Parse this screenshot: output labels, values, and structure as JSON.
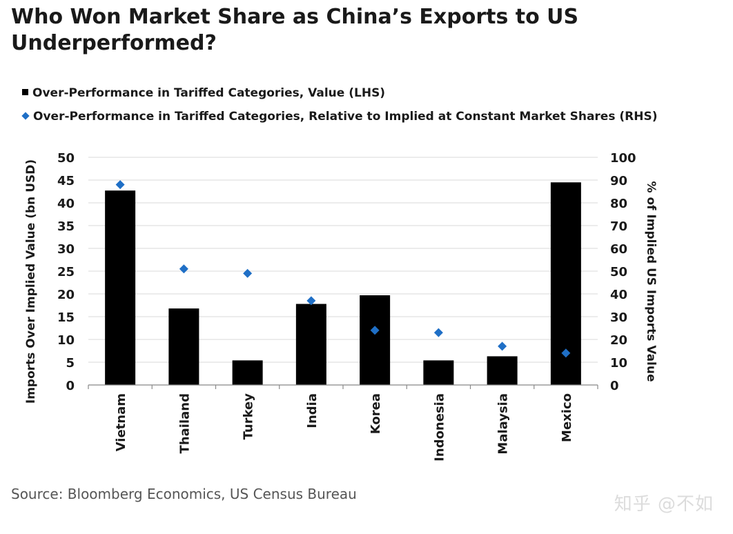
{
  "title": "Who Won Market Share as China’s Exports to US Underperformed?",
  "legend": {
    "bars": "Over-Performance in Tariffed Categories, Value (LHS)",
    "diamonds": "Over-Performance in Tariffed Categories, Relative to Implied at Constant Market Shares (RHS)"
  },
  "source": "Source: Bloomberg Economics, US Census Bureau",
  "watermark": "知乎 @不如",
  "colors": {
    "bar": "#000000",
    "diamond": "#1f6fc6",
    "grid": "#d9d9d9"
  },
  "chart_data": {
    "type": "bar",
    "title": "Who Won Market Share as China’s Exports to US Underperformed?",
    "categories": [
      "Vietnam",
      "Thailand",
      "Turkey",
      "India",
      "Korea",
      "Indonesia",
      "Malaysia",
      "Mexico"
    ],
    "series": [
      {
        "name": "Over-Performance in Tariffed Categories, Value (LHS)",
        "axis": "left",
        "marker": "bar",
        "values": [
          42.7,
          16.8,
          5.4,
          17.8,
          19.7,
          5.4,
          6.3,
          44.5
        ]
      },
      {
        "name": "Over-Performance in Tariffed Categories, Relative to Implied at Constant Market Shares (RHS)",
        "axis": "right",
        "marker": "diamond",
        "values": [
          88,
          51,
          49,
          37,
          24,
          23,
          17,
          14
        ]
      }
    ],
    "ylabel": "Imports Over Implied Value (bn USD)",
    "y2label": "% of Implied US Imports Value",
    "ylim": [
      0,
      50
    ],
    "y2lim": [
      0,
      100
    ],
    "yticks": [
      "0",
      "5",
      "10",
      "15",
      "20",
      "25",
      "30",
      "35",
      "40",
      "45",
      "50"
    ],
    "y2ticks": [
      "0",
      "10",
      "20",
      "30",
      "40",
      "50",
      "60",
      "70",
      "80",
      "90",
      "100"
    ],
    "grid": true
  }
}
